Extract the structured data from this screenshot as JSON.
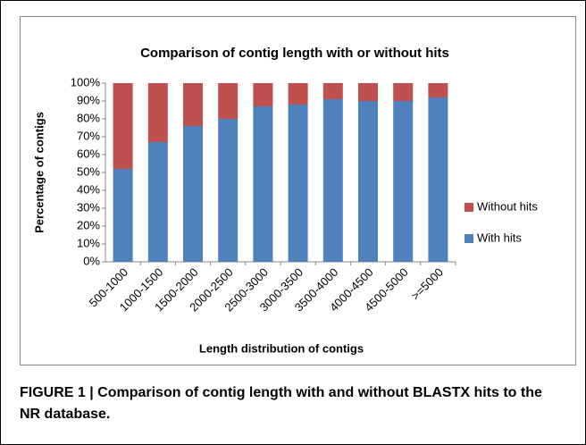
{
  "chart_data": {
    "type": "stacked_bar",
    "title": "Comparison of contig length with or without hits",
    "x_label": "Length distribution of contigs",
    "y_label": "Percentage of contigs",
    "categories": [
      "500-1000",
      "1000-1500",
      "1500-2000",
      "2000-2500",
      "2500-3000",
      "3000-3500",
      "3500-4000",
      "4000-4500",
      "4500-5000",
      ">=5000"
    ],
    "series": [
      {
        "name": "With hits",
        "color": "#4f81bd",
        "values": [
          52,
          67,
          76,
          80,
          87,
          88,
          91,
          90,
          90,
          92
        ]
      },
      {
        "name": "Without hits",
        "color": "#c0504d",
        "values": [
          48,
          33,
          24,
          20,
          13,
          12,
          9,
          10,
          10,
          8
        ]
      }
    ],
    "ylim": [
      0,
      100
    ],
    "yticks": [
      {
        "value": 0,
        "label": "0%"
      },
      {
        "value": 10,
        "label": "10%"
      },
      {
        "value": 20,
        "label": "20%"
      },
      {
        "value": 30,
        "label": "30%"
      },
      {
        "value": 40,
        "label": "40%"
      },
      {
        "value": 50,
        "label": "50%"
      },
      {
        "value": 60,
        "label": "60%"
      },
      {
        "value": 70,
        "label": "70%"
      },
      {
        "value": 80,
        "label": "80%"
      },
      {
        "value": 90,
        "label": "90%"
      },
      {
        "value": 100,
        "label": "100%"
      }
    ],
    "legend": "right",
    "caption": "FIGURE 1 | Comparison of contig length with and without BLASTX hits to the NR database."
  }
}
